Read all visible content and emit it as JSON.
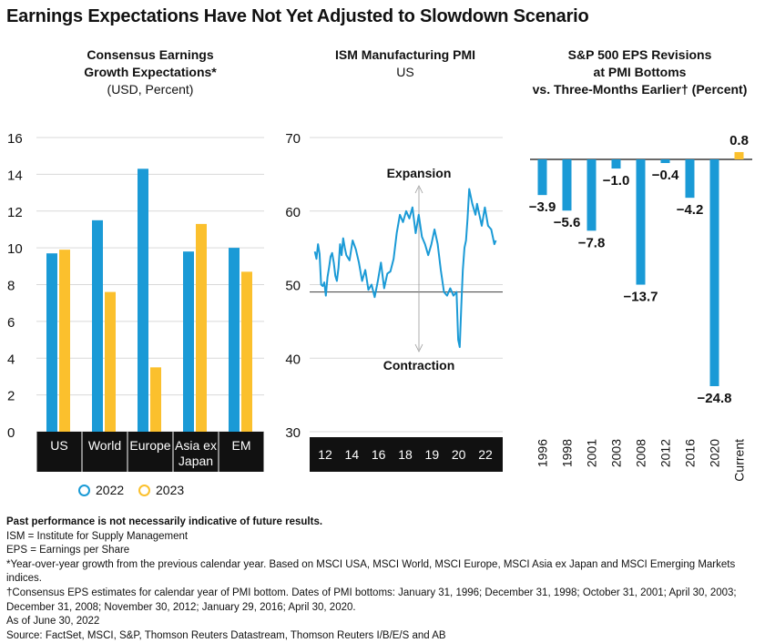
{
  "title": "Earnings Expectations Have Not Yet Adjusted to Slowdown Scenario",
  "colors": {
    "blue": "#1a9ad6",
    "yellow": "#fbc02d",
    "dark": "#111111",
    "gray": "#999999"
  },
  "panels": {
    "p1": {
      "title_line1": "Consensus Earnings",
      "title_line2": "Growth Expectations*",
      "subtitle": "(USD, Percent)"
    },
    "p2": {
      "title": "ISM Manufacturing PMI",
      "subtitle": "US",
      "expansion_label": "Expansion",
      "contraction_label": "Contraction"
    },
    "p3": {
      "title_line1": "S&P 500 EPS Revisions",
      "title_line2": "at PMI Bottoms",
      "title_line3": "vs. Three-Months Earlier† (Percent)"
    }
  },
  "chart_data": [
    {
      "type": "bar",
      "title": "Consensus Earnings Growth Expectations*",
      "subtitle": "(USD, Percent)",
      "categories": [
        [
          "US"
        ],
        [
          "World"
        ],
        [
          "Europe"
        ],
        [
          "Asia ex",
          "Japan"
        ],
        [
          "EM"
        ]
      ],
      "series": [
        {
          "name": "2022",
          "values": [
            9.7,
            11.5,
            14.3,
            9.8,
            10.0
          ]
        },
        {
          "name": "2023",
          "values": [
            9.9,
            7.6,
            3.5,
            11.3,
            8.7
          ]
        }
      ],
      "ylim": [
        0,
        16
      ],
      "yticks": [
        0,
        2,
        4,
        6,
        8,
        10,
        12,
        14,
        16
      ],
      "legend": "bottom"
    },
    {
      "type": "line",
      "title": "ISM Manufacturing PMI",
      "subtitle": "US",
      "ylim": [
        30,
        70
      ],
      "yticks": [
        30,
        40,
        50,
        60,
        70
      ],
      "xlim": [
        2010.9,
        2022.7
      ],
      "xticks": [
        "12",
        "14",
        "16",
        "18",
        "19",
        "20",
        "22"
      ],
      "reference_line": 49,
      "series": [
        {
          "x": [
            2011.0,
            2011.1,
            2011.2,
            2011.3,
            2011.4,
            2011.5,
            2011.6,
            2011.7,
            2011.8,
            2011.9,
            2012.0,
            2012.1,
            2012.2,
            2012.3,
            2012.4,
            2012.5,
            2012.6,
            2012.7,
            2012.8,
            2012.9,
            2013.0,
            2013.2,
            2013.4,
            2013.6,
            2013.8,
            2014.0,
            2014.2,
            2014.4,
            2014.6,
            2014.8,
            2015.0,
            2015.2,
            2015.4,
            2015.6,
            2015.8,
            2016.0,
            2016.2,
            2016.4,
            2016.6,
            2016.8,
            2017.0,
            2017.2,
            2017.4,
            2017.6,
            2017.8,
            2018.0,
            2018.2,
            2018.4,
            2018.6,
            2018.8,
            2019.0,
            2019.2,
            2019.4,
            2019.6,
            2019.8,
            2020.0,
            2020.1,
            2020.2,
            2020.3,
            2020.4,
            2020.5,
            2020.6,
            2020.7,
            2020.8,
            2021.0,
            2021.2,
            2021.3,
            2021.4,
            2021.6,
            2021.8,
            2022.0,
            2022.2,
            2022.4,
            2022.5
          ],
          "y": [
            54.5,
            53.5,
            55.5,
            54.2,
            50.0,
            49.8,
            50.3,
            48.5,
            51.0,
            52.3,
            53.8,
            54.3,
            53.0,
            51.2,
            50.5,
            52.3,
            55.5,
            54.0,
            56.3,
            55.0,
            54.0,
            53.3,
            56.0,
            54.8,
            53.0,
            50.5,
            52.0,
            49.3,
            50.0,
            48.3,
            50.5,
            53.0,
            49.5,
            51.5,
            51.8,
            53.5,
            57.0,
            59.5,
            58.5,
            60.0,
            59.0,
            60.5,
            57.0,
            59.5,
            56.5,
            55.5,
            54.0,
            55.5,
            57.5,
            55.5,
            52.0,
            49.0,
            48.5,
            49.5,
            48.5,
            49.0,
            42.5,
            41.5,
            47.0,
            52.0,
            55.0,
            56.0,
            59.0,
            63.0,
            61.0,
            59.5,
            61.0,
            60.0,
            58.0,
            60.5,
            58.0,
            57.5,
            55.5,
            56.0
          ]
        }
      ]
    },
    {
      "type": "bar",
      "title": "S&P 500 EPS Revisions at PMI Bottoms vs. Three-Months Earlier† (Percent)",
      "categories": [
        "1996",
        "1998",
        "2001",
        "2003",
        "2008",
        "2012",
        "2016",
        "2020",
        "Current"
      ],
      "values": [
        -3.9,
        -5.6,
        -7.8,
        -1.0,
        -13.7,
        -0.4,
        -4.2,
        -24.8,
        0.8
      ],
      "value_labels": [
        "−3.9",
        "−5.6",
        "−7.8",
        "−1.0",
        "−13.7",
        "−0.4",
        "−4.2",
        "−24.8",
        "0.8"
      ],
      "ylim": [
        -25,
        1
      ]
    }
  ],
  "footnotes": [
    "Past performance is not necessarily indicative of future results.",
    "ISM = Institute for Supply Management",
    "EPS = Earnings per Share",
    "*Year-over-year growth from the previous calendar year. Based on MSCI USA, MSCI World, MSCI Europe, MSCI Asia ex Japan and MSCI Emerging Markets indices.",
    "†Consensus EPS estimates for calendar year of PMI bottom. Dates of PMI bottoms: January 31, 1996; December 31, 1998; October 31, 2001; April 30, 2003; December 31, 2008; November 30, 2012; January 29, 2016; April 30, 2020.",
    "As of June 30, 2022",
    "Source: FactSet, MSCI, S&P, Thomson Reuters Datastream, Thomson Reuters I/B/E/S and AB"
  ]
}
